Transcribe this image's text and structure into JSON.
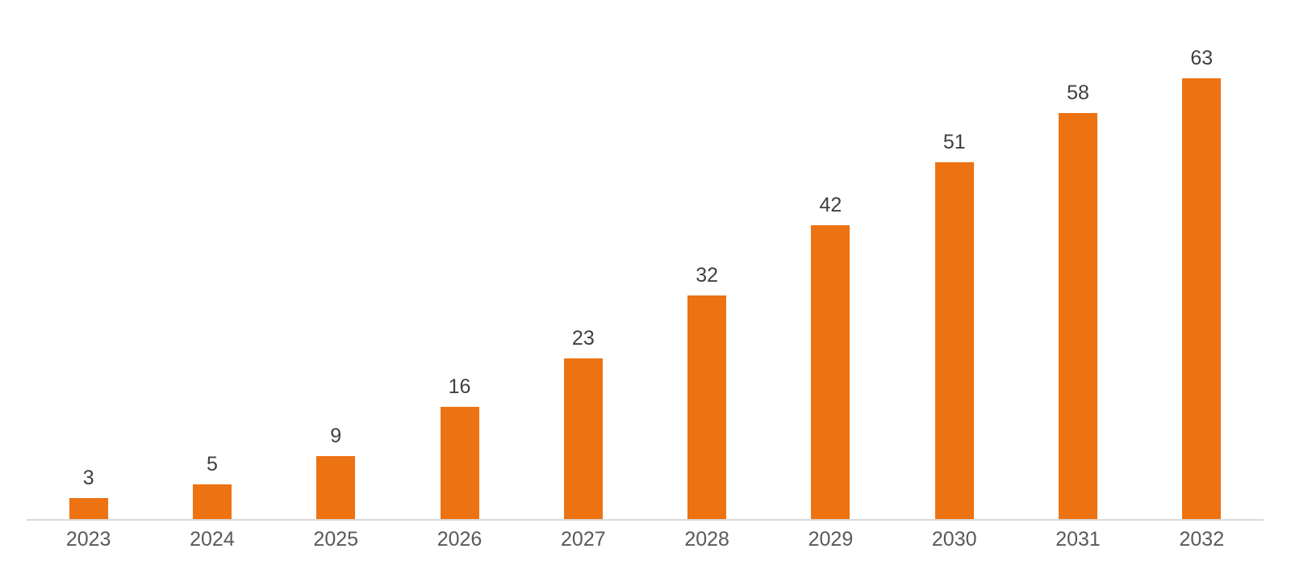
{
  "chart_data": {
    "type": "bar",
    "categories": [
      "2023",
      "2024",
      "2025",
      "2026",
      "2027",
      "2028",
      "2029",
      "2030",
      "2031",
      "2032"
    ],
    "values": [
      3,
      5,
      9,
      16,
      23,
      32,
      42,
      51,
      58,
      63
    ],
    "title": "",
    "xlabel": "",
    "ylabel": "",
    "ylim": [
      0,
      63
    ],
    "grid": false,
    "legend_position": "none",
    "bar_color": "#ED7212",
    "axis_line_color": "#D9D9D9",
    "data_label_color": "#404040",
    "tick_label_color": "#595959"
  }
}
